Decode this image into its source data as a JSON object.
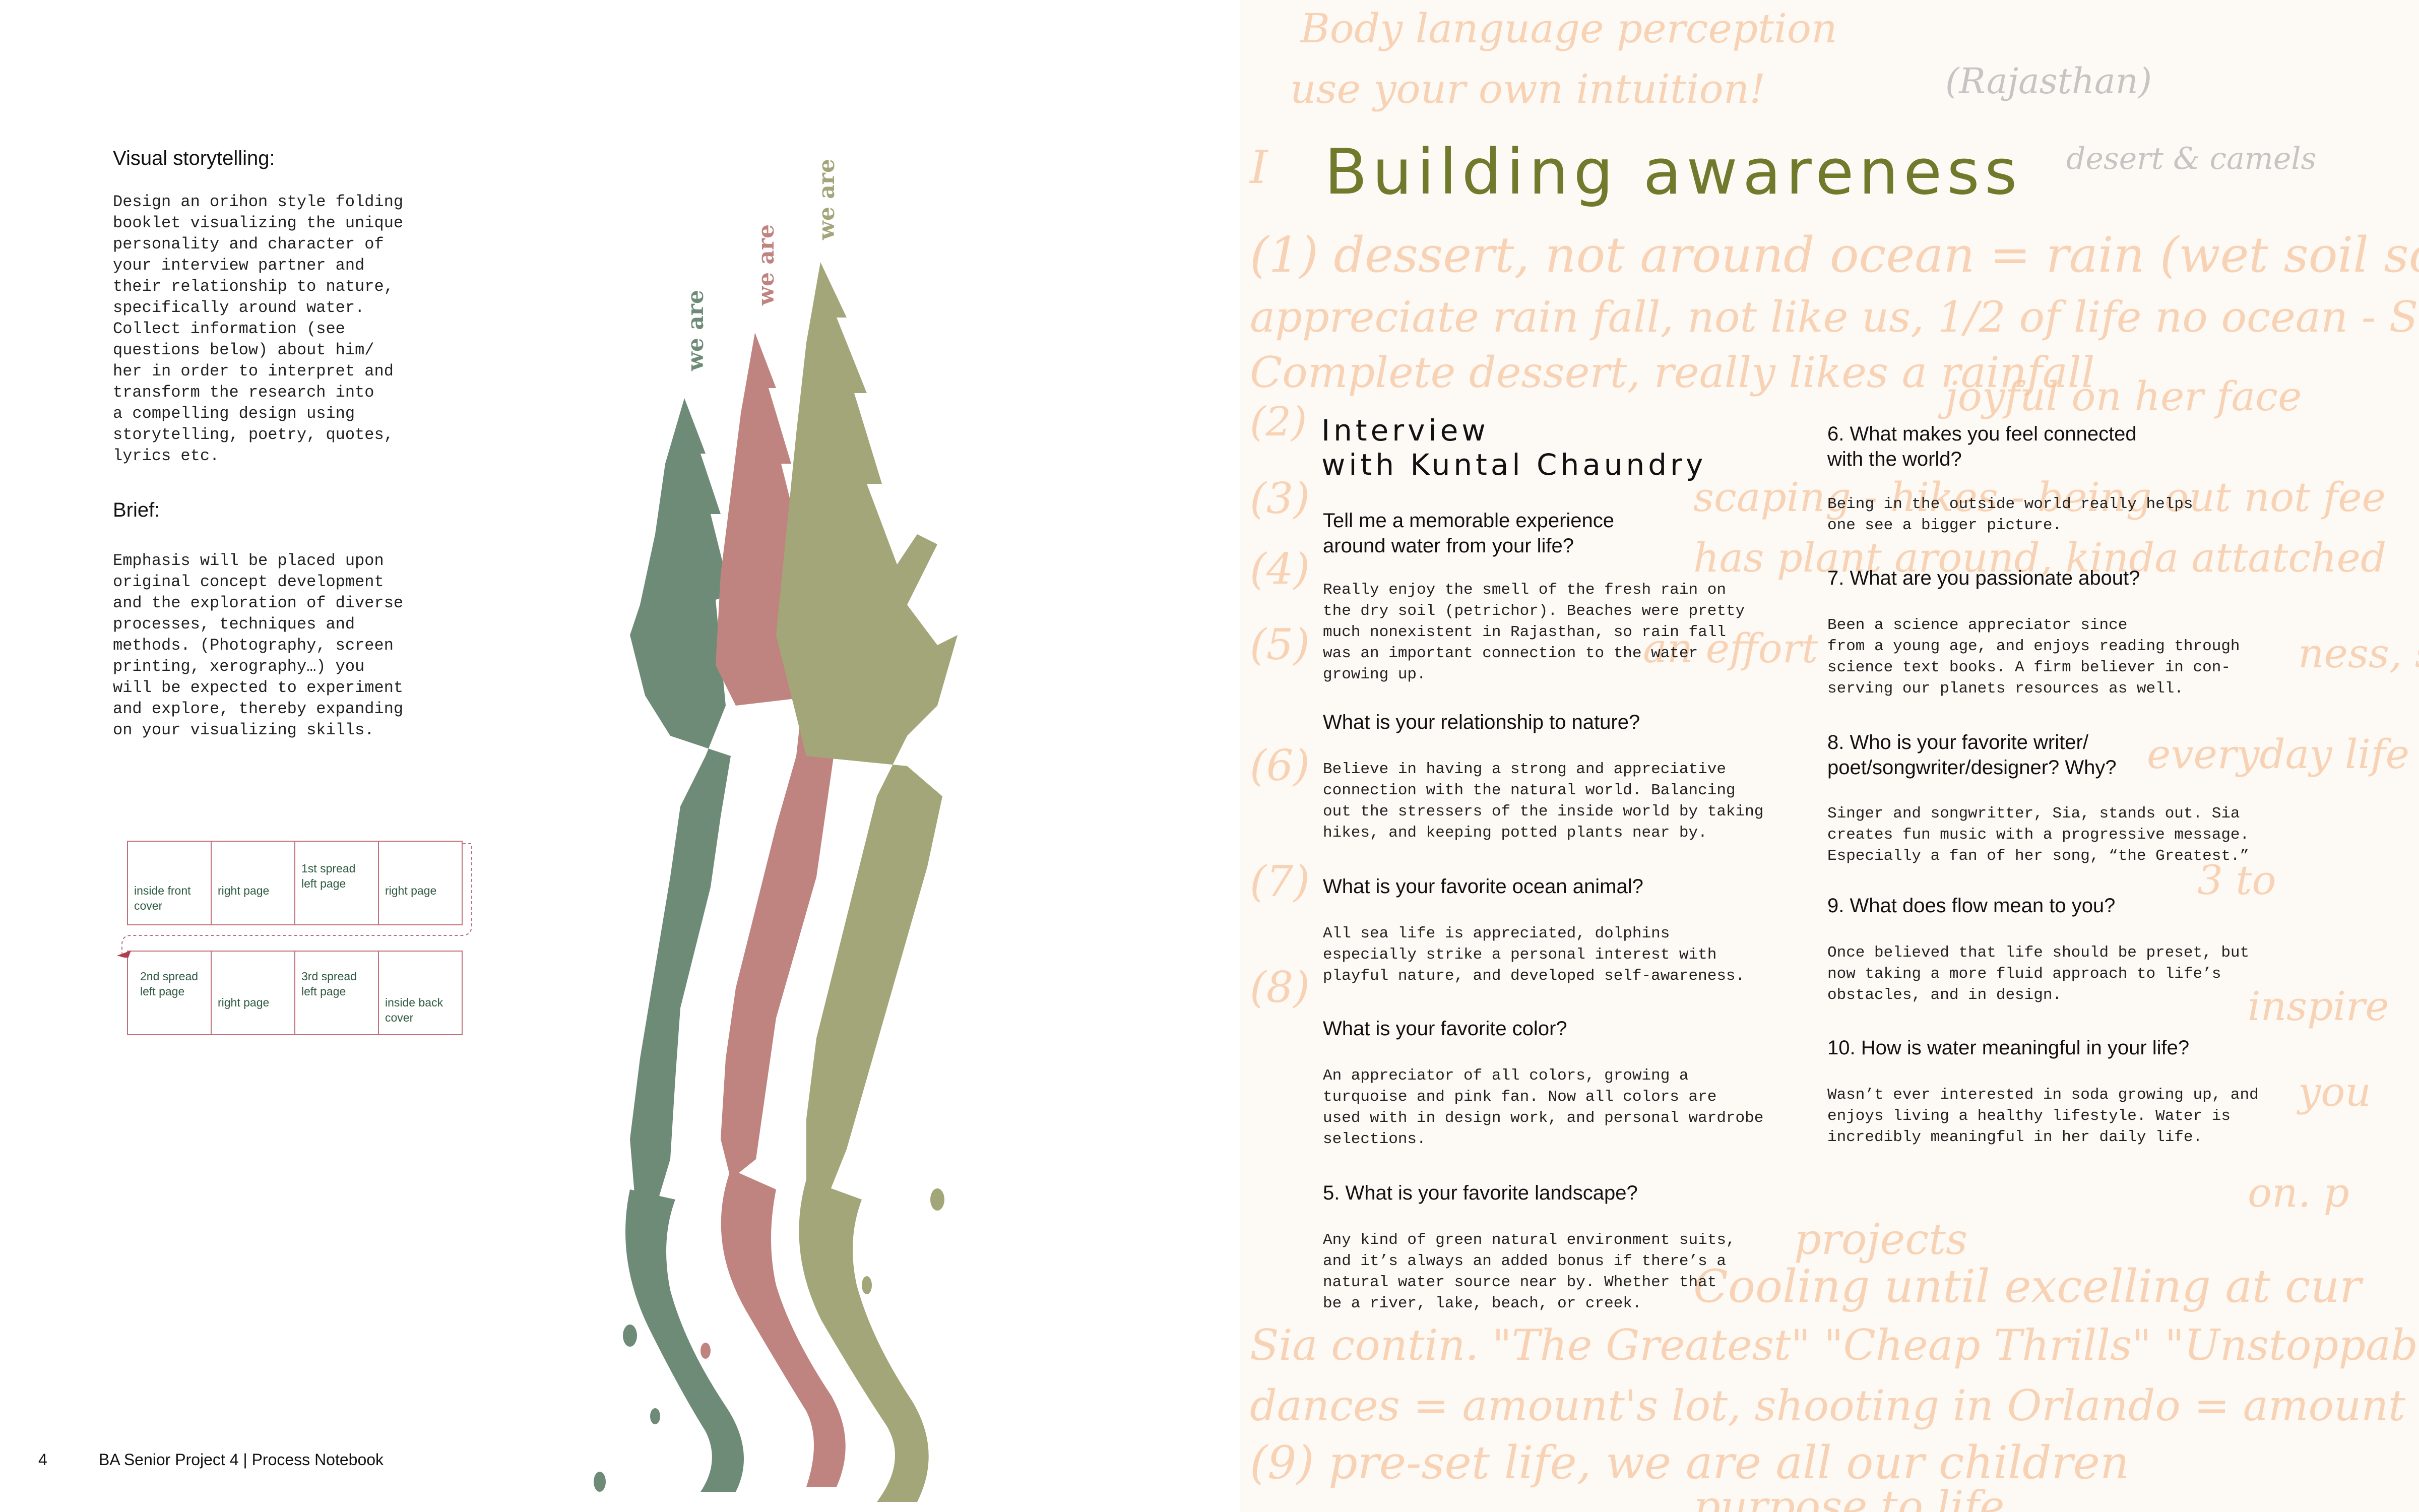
{
  "left": {
    "visual_heading": "Visual storytelling:",
    "visual_body": "Design an orihon style folding\nbooklet visualizing the unique\npersonality and character of\nyour interview partner and\ntheir relationship to nature,\nspecifically around water.\nCollect information (see\nquestions below) about him/\nher in order to interpret and\ntransform the research into\na compelling design using\nstorytelling, poetry, quotes,\nlyrics etc.",
    "brief_heading": "Brief:",
    "brief_body": "Emphasis will be placed upon\noriginal concept development\nand the exploration of diverse\nprocesses, techniques and\nmethods. (Photography, screen\nprinting, xerography…) you\nwill be expected to experiment\nand explore, thereby expanding\non your visualizing skills.",
    "booklet": {
      "row1": [
        "inside front\ncover",
        "right page",
        "1st spread\nleft page",
        "right page"
      ],
      "row2": [
        "2nd spread\nleft page",
        "right page",
        "3rd spread\nleft page",
        "inside back\ncover"
      ]
    },
    "tree_label": "we are",
    "tree_colors": [
      "#6e8b78",
      "#c08480",
      "#a3a678"
    ],
    "page_number": "4",
    "footer_text": "BA Senior Project 4 | Process Notebook"
  },
  "right": {
    "title": "Building awareness",
    "interview_title": "Interview\nwith Kuntal Chaundry",
    "col1": [
      {
        "q": "Tell me a memorable experience\naround water from your life?",
        "a": "Really enjoy the smell of the fresh rain on\nthe dry soil (petrichor). Beaches were pretty\nmuch nonexistent in Rajasthan, so rain fall\nwas an important connection to the water\ngrowing up."
      },
      {
        "q": "What is your relationship to nature?",
        "a": "Believe in having a strong and appreciative\nconnection with the natural world. Balancing\nout the stressers of the inside world by taking\nhikes, and keeping potted plants near by."
      },
      {
        "q": "What is your favorite ocean animal?",
        "a": "All sea life is appreciated, dolphins\nespecially strike a personal interest with\nplayful nature, and developed self-awareness."
      },
      {
        "q": "What is your favorite color?",
        "a": "An appreciator of all colors, growing a\nturquoise and pink fan. Now all colors are\nused with in design work, and personal wardrobe\nselections."
      },
      {
        "q": "5. What is your favorite landscape?",
        "a": "Any kind of green natural environment suits,\nand it’s always an added bonus if there’s a\nnatural water source near by. Whether that\nbe a river, lake, beach, or creek."
      }
    ],
    "col2": [
      {
        "q": "6. What makes you feel connected\nwith the world?",
        "a": "Being in the outside world really helps\none see a bigger picture."
      },
      {
        "q": "7. What are you passionate about?",
        "a": "Been a science appreciator since\nfrom a young age, and enjoys reading through\nscience text books. A firm believer in con-\nserving our planets resources as well."
      },
      {
        "q": "8. Who is your favorite writer/\npoet/songwriter/designer? Why?",
        "a": "Singer and songwritter, Sia, stands out. Sia\ncreates fun music with a progressive message.\nEspecially a fan of her song, “the Greatest.”"
      },
      {
        "q": "9. What does flow mean to you?",
        "a": "Once believed that life should be preset, but\nnow taking a more fluid approach to life’s\nobstacles, and in design."
      },
      {
        "q": "10. How is water meaningful in your life?",
        "a": "Wasn’t ever interested in soda growing up, and\nenjoys living a healthy lifestyle. Water is\nincredibly meaningful in her daily life."
      }
    ]
  }
}
